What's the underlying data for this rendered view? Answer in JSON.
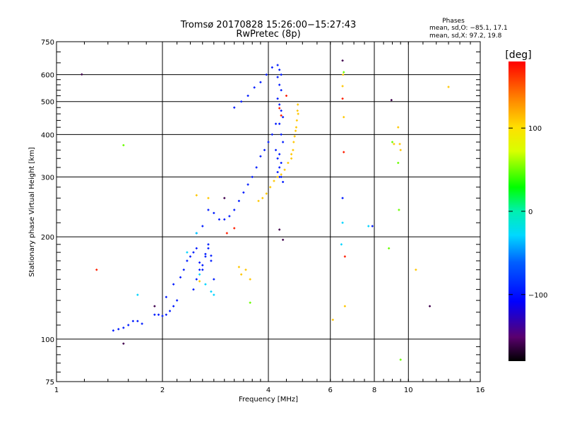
{
  "chart_data": {
    "type": "scatter",
    "title": "Tromsø 20170828 15:26:00−15:27:43",
    "subtitle": "RwPretec (8p)",
    "xlabel": "Frequency [MHz]",
    "ylabel": "Stationary phase Virtual Height [km]",
    "x_scale": "log",
    "y_scale": "log",
    "xlim": [
      1,
      16
    ],
    "ylim": [
      75,
      750
    ],
    "x_ticks": [
      1,
      2,
      4,
      6,
      8,
      10,
      16
    ],
    "x_tick_labels": [
      "1",
      "2",
      "4",
      "6",
      "8",
      "10",
      "16"
    ],
    "y_ticks": [
      75,
      100,
      200,
      300,
      400,
      500,
      600,
      750
    ],
    "y_tick_labels": [
      "75",
      "100",
      "200",
      "300",
      "400",
      "500",
      "600",
      "750"
    ],
    "grid": true,
    "info": {
      "heading": "Phases",
      "line1": "mean, sd,O: −85.1, 17.1",
      "line2": "mean, sd,X:  97.2, 19.8"
    },
    "colorbar": {
      "label": "[deg]",
      "range": [
        -180,
        180
      ],
      "ticks": [
        100,
        0,
        -100
      ],
      "tick_labels": [
        "100",
        "0",
        "−100"
      ],
      "scheme": "rainbow"
    },
    "series": [
      {
        "phase": -95,
        "x": [
          1.45,
          1.5,
          1.55,
          1.6,
          1.65,
          1.7,
          1.75,
          1.9,
          1.95,
          2.0,
          2.05,
          2.1,
          2.15,
          2.2,
          2.05,
          2.15,
          2.25,
          2.3,
          2.35,
          2.4,
          2.45,
          2.5,
          2.55,
          2.6,
          2.65,
          2.7,
          2.75,
          2.8,
          2.45,
          2.5,
          2.55,
          2.6,
          2.65,
          2.7,
          2.75,
          2.5,
          2.6,
          2.7,
          2.8,
          2.9,
          3.0,
          3.1,
          3.2,
          3.3,
          3.4,
          3.5,
          3.6,
          3.7,
          3.8,
          3.9,
          4.0,
          4.1,
          4.2,
          3.2,
          3.35,
          3.5,
          3.65,
          3.8,
          3.95,
          4.1,
          4.25,
          4.3,
          4.35,
          4.25,
          4.3,
          4.35,
          4.25,
          4.3,
          4.35,
          4.4,
          4.3,
          4.35,
          4.4,
          4.2,
          4.25,
          4.3,
          4.35,
          4.4,
          4.3,
          4.35,
          4.25,
          4.3,
          6.5,
          7.9
        ],
        "y": [
          106,
          107,
          108,
          110,
          113,
          113,
          111,
          118,
          118,
          117,
          118,
          121,
          125,
          130,
          133,
          145,
          152,
          160,
          170,
          175,
          180,
          185,
          168,
          160,
          175,
          190,
          170,
          150,
          140,
          150,
          160,
          165,
          178,
          185,
          176,
          205,
          215,
          240,
          235,
          225,
          225,
          230,
          240,
          255,
          270,
          285,
          300,
          320,
          345,
          360,
          380,
          400,
          430,
          480,
          500,
          520,
          550,
          570,
          600,
          630,
          640,
          620,
          600,
          590,
          560,
          540,
          510,
          490,
          470,
          450,
          430,
          400,
          380,
          360,
          340,
          320,
          300,
          290,
          350,
          330,
          310,
          300,
          260,
          215
        ]
      },
      {
        "phase": 110,
        "x": [
          3.75,
          3.85,
          3.95,
          4.05,
          4.15,
          4.25,
          4.35,
          4.45,
          4.55,
          4.65,
          4.72,
          4.78,
          4.82,
          4.84,
          4.85,
          4.86,
          4.8,
          4.75,
          4.7,
          4.65
        ],
        "y": [
          255,
          260,
          268,
          280,
          292,
          300,
          305,
          315,
          330,
          350,
          380,
          410,
          440,
          470,
          490,
          460,
          420,
          395,
          360,
          340
        ]
      },
      {
        "phase": -30,
        "x": [
          1.7,
          2.35,
          2.5,
          2.55,
          2.65,
          2.75,
          2.8,
          6.45,
          6.5,
          7.7
        ],
        "y": [
          135,
          180,
          205,
          155,
          145,
          138,
          135,
          190,
          220,
          215
        ]
      },
      {
        "phase": 110,
        "x": [
          2.5,
          2.55,
          2.7,
          3.3,
          3.35,
          3.45,
          3.55,
          6.1,
          6.5,
          6.52,
          6.55,
          6.6,
          9.1,
          9.35,
          9.45,
          9.5,
          10.5,
          13.0
        ],
        "y": [
          265,
          148,
          260,
          163,
          155,
          160,
          150,
          114,
          555,
          600,
          450,
          125,
          375,
          420,
          375,
          360,
          160,
          552
        ]
      },
      {
        "phase": 50,
        "x": [
          1.55,
          3.55,
          6.55,
          8.8,
          9.0,
          9.35,
          9.4,
          9.5
        ],
        "y": [
          372,
          128,
          610,
          185,
          380,
          330,
          240,
          87
        ]
      },
      {
        "phase": 170,
        "x": [
          1.3,
          3.05,
          3.2,
          4.3,
          4.35,
          4.5,
          6.5,
          6.55,
          6.6
        ],
        "y": [
          160,
          205,
          212,
          478,
          455,
          520,
          510,
          355,
          175
        ]
      },
      {
        "phase": -160,
        "x": [
          1.18,
          1.55,
          1.9,
          4.3,
          4.4,
          6.5,
          8.95,
          11.5,
          3.0
        ],
        "y": [
          601,
          97,
          125,
          210,
          196,
          660,
          505,
          125,
          260
        ]
      }
    ]
  }
}
